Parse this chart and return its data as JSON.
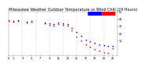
{
  "title": "Milwaukee Weather Outdoor Temperature vs Wind Chill (24 Hours)",
  "title_fontsize": 3.5,
  "title_color": "#000000",
  "background_color": "#ffffff",
  "plot_bg_color": "#ffffff",
  "grid_color": "#aaaaaa",
  "temp_color": "#0000ff",
  "windchill_color": "#ff0000",
  "temp_x": [
    0,
    1,
    2,
    4,
    5,
    8,
    9,
    10,
    11,
    12,
    13,
    14,
    15,
    16,
    17,
    18,
    19,
    20,
    21,
    22,
    23
  ],
  "temp_y": [
    38,
    37,
    38,
    36,
    37,
    35,
    34,
    33,
    35,
    34,
    33,
    28,
    22,
    17,
    12,
    9,
    7,
    5,
    4,
    3,
    3
  ],
  "windchill_x": [
    0,
    1,
    2,
    4,
    5,
    8,
    9,
    10,
    11,
    12,
    13,
    14,
    15,
    16,
    17,
    18,
    19,
    20,
    21,
    22,
    23
  ],
  "windchill_y": [
    37,
    36,
    37,
    35,
    36,
    34,
    32,
    31,
    33,
    32,
    31,
    24,
    16,
    10,
    5,
    2,
    -1,
    -4,
    -6,
    -7,
    0
  ],
  "xlim": [
    0,
    24
  ],
  "ylim": [
    -10,
    50
  ],
  "xtick_positions": [
    0,
    1,
    3,
    5,
    7,
    9,
    11,
    13,
    15,
    17,
    19,
    21,
    23
  ],
  "xtick_labels": [
    "0",
    "1",
    "3",
    "5",
    "7",
    "9",
    "11",
    "13",
    "15",
    "17",
    "19",
    "21",
    "23"
  ],
  "ytick_positions": [
    10,
    20,
    30,
    40,
    50
  ],
  "ytick_labels": [
    "10",
    "20",
    "30",
    "40",
    "50"
  ],
  "marker_size": 1.5,
  "vgrid_positions": [
    3,
    6,
    9,
    12,
    15,
    18,
    21
  ],
  "legend_blue": "#0000ff",
  "legend_red": "#ff0000"
}
